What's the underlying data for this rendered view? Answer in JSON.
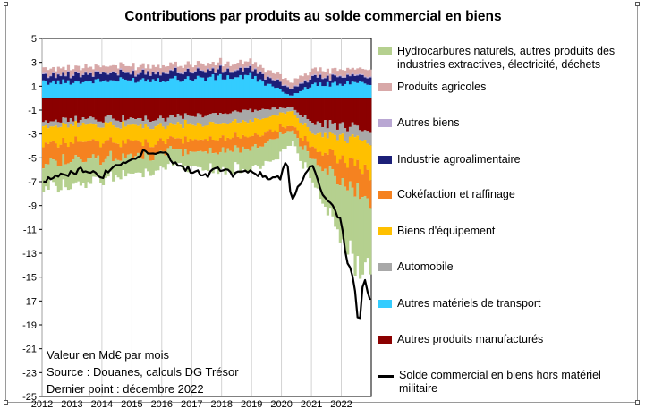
{
  "chart_data": {
    "type": "bar",
    "title": "Contributions par produits au solde commercial en biens",
    "y_ticks": [
      5,
      3,
      1,
      -1,
      -3,
      -5,
      -7,
      -9,
      -11,
      -13,
      -15,
      -17,
      -19,
      -21,
      -23,
      -25
    ],
    "ylim": [
      -25,
      5
    ],
    "x_ticks": [
      "2012",
      "2013",
      "2014",
      "2015",
      "2016",
      "2017",
      "2018",
      "2019",
      "2020",
      "2021",
      "2022"
    ],
    "x_range": [
      "2012-01",
      "2022-12"
    ],
    "grid": "vertical",
    "legend_position": "right",
    "stacked": true,
    "series": [
      {
        "name": "Hydrocarbures naturels, autres produits des industries extractives, électricité, déchets",
        "color": "#b5d08f",
        "x": [
          "2012-01",
          "2013-01",
          "2014-01",
          "2015-01",
          "2016-01",
          "2017-01",
          "2018-01",
          "2019-01",
          "2020-01",
          "2020-05",
          "2021-01",
          "2022-01",
          "2022-06",
          "2022-12"
        ],
        "values": [
          -2.0,
          -2.0,
          -1.7,
          -1.5,
          -1.2,
          -1.3,
          -1.6,
          -1.7,
          -1.6,
          -1.0,
          -1.8,
          -4.5,
          -6.5,
          -5.5
        ]
      },
      {
        "name": "Produits agricoles",
        "color": "#d8a8a8",
        "x": [
          "2012-01",
          "2022-12"
        ],
        "values": [
          0.5,
          0.5
        ]
      },
      {
        "name": "Autres biens",
        "color": "#b9a7d3",
        "x": [
          "2012-01",
          "2022-12"
        ],
        "values": [
          0.1,
          0.1
        ]
      },
      {
        "name": "Industrie agroalimentaire",
        "color": "#1c1f78",
        "x": [
          "2012-01",
          "2022-12"
        ],
        "values": [
          0.6,
          0.6
        ]
      },
      {
        "name": "Cokéfaction et raffinage",
        "color": "#f58220",
        "x": [
          "2012-01",
          "2015-01",
          "2016-01",
          "2019-01",
          "2020-05",
          "2021-01",
          "2022-01",
          "2022-12"
        ],
        "values": [
          -1.6,
          -1.3,
          -0.9,
          -1.1,
          -0.4,
          -1.0,
          -2.0,
          -2.4
        ]
      },
      {
        "name": "Biens d'équipement",
        "color": "#ffc000",
        "x": [
          "2012-01",
          "2016-01",
          "2020-01",
          "2021-01",
          "2022-01",
          "2022-12"
        ],
        "values": [
          -1.5,
          -1.3,
          -1.2,
          -1.2,
          -1.8,
          -2.5
        ]
      },
      {
        "name": "Automobile",
        "color": "#a8a8a8",
        "x": [
          "2012-01",
          "2016-01",
          "2019-01",
          "2020-05",
          "2021-01",
          "2022-01",
          "2022-12"
        ],
        "values": [
          -0.4,
          -0.6,
          -0.9,
          -0.3,
          -0.9,
          -1.0,
          -0.9
        ]
      },
      {
        "name": "Autres matériels de transport",
        "color": "#33ccff",
        "x": [
          "2012-01",
          "2016-01",
          "2019-01",
          "2020-05",
          "2021-01",
          "2022-12"
        ],
        "values": [
          1.3,
          1.6,
          1.8,
          0.2,
          1.1,
          1.3
        ]
      },
      {
        "name": "Autres produits manufacturés",
        "color": "#8b0000",
        "x": [
          "2012-01",
          "2016-01",
          "2020-05",
          "2021-01",
          "2022-12"
        ],
        "values": [
          -1.8,
          -1.7,
          -0.7,
          -2.0,
          -2.6
        ]
      },
      {
        "name": "Solde commercial en biens hors matériel militaire",
        "color": "#000000",
        "type": "line",
        "x": [
          "2012-01",
          "2012-06",
          "2013-01",
          "2013-06",
          "2014-01",
          "2014-06",
          "2015-01",
          "2015-06",
          "2016-01",
          "2016-06",
          "2017-01",
          "2017-06",
          "2018-01",
          "2018-06",
          "2019-01",
          "2019-06",
          "2020-01",
          "2020-03",
          "2020-05",
          "2020-07",
          "2020-10",
          "2021-01",
          "2021-06",
          "2022-01",
          "2022-03",
          "2022-06",
          "2022-08",
          "2022-10",
          "2022-12"
        ],
        "values": [
          -7.0,
          -6.7,
          -6.2,
          -6.0,
          -6.6,
          -5.6,
          -5.1,
          -4.4,
          -4.5,
          -5.4,
          -6.1,
          -6.5,
          -5.9,
          -6.4,
          -6.0,
          -6.6,
          -6.6,
          -4.8,
          -8.8,
          -7.8,
          -6.5,
          -5.5,
          -8.2,
          -10.2,
          -13.5,
          -15.0,
          -19.5,
          -14.5,
          -16.8
        ]
      }
    ]
  },
  "notes": {
    "unit": "Valeur en Md€ par mois",
    "source": "Source : Douanes, calculs DG Trésor",
    "last_point": "Dernier point : décembre 2022"
  }
}
